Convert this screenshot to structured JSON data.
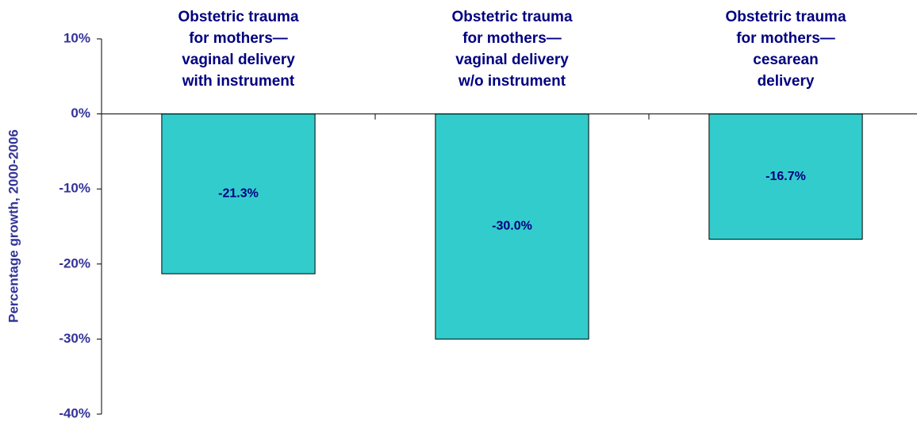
{
  "chart_data": {
    "type": "bar",
    "y_label": "Percentage growth, 2000-2006",
    "categories": [
      "Obstetric trauma\nfor mothers—\nvaginal delivery\nwith instrument",
      "Obstetric trauma\nfor mothers—\nvaginal delivery\nw/o instrument",
      "Obstetric trauma\nfor mothers—\ncesarean\ndelivery"
    ],
    "values": [
      -21.3,
      -30.0,
      -16.7
    ],
    "value_labels": [
      "-21.3%",
      "-30.0%",
      "-16.7%"
    ],
    "color": "#33cccc",
    "ylim": [
      -40,
      10
    ],
    "yticks": [
      {
        "value": 10,
        "label": "10%"
      },
      {
        "value": 0,
        "label": "0%"
      },
      {
        "value": -10,
        "label": "-10%"
      },
      {
        "value": -20,
        "label": "-20%"
      },
      {
        "value": -30,
        "label": "-30%"
      },
      {
        "value": -40,
        "label": "-40%"
      }
    ],
    "grid": false
  }
}
